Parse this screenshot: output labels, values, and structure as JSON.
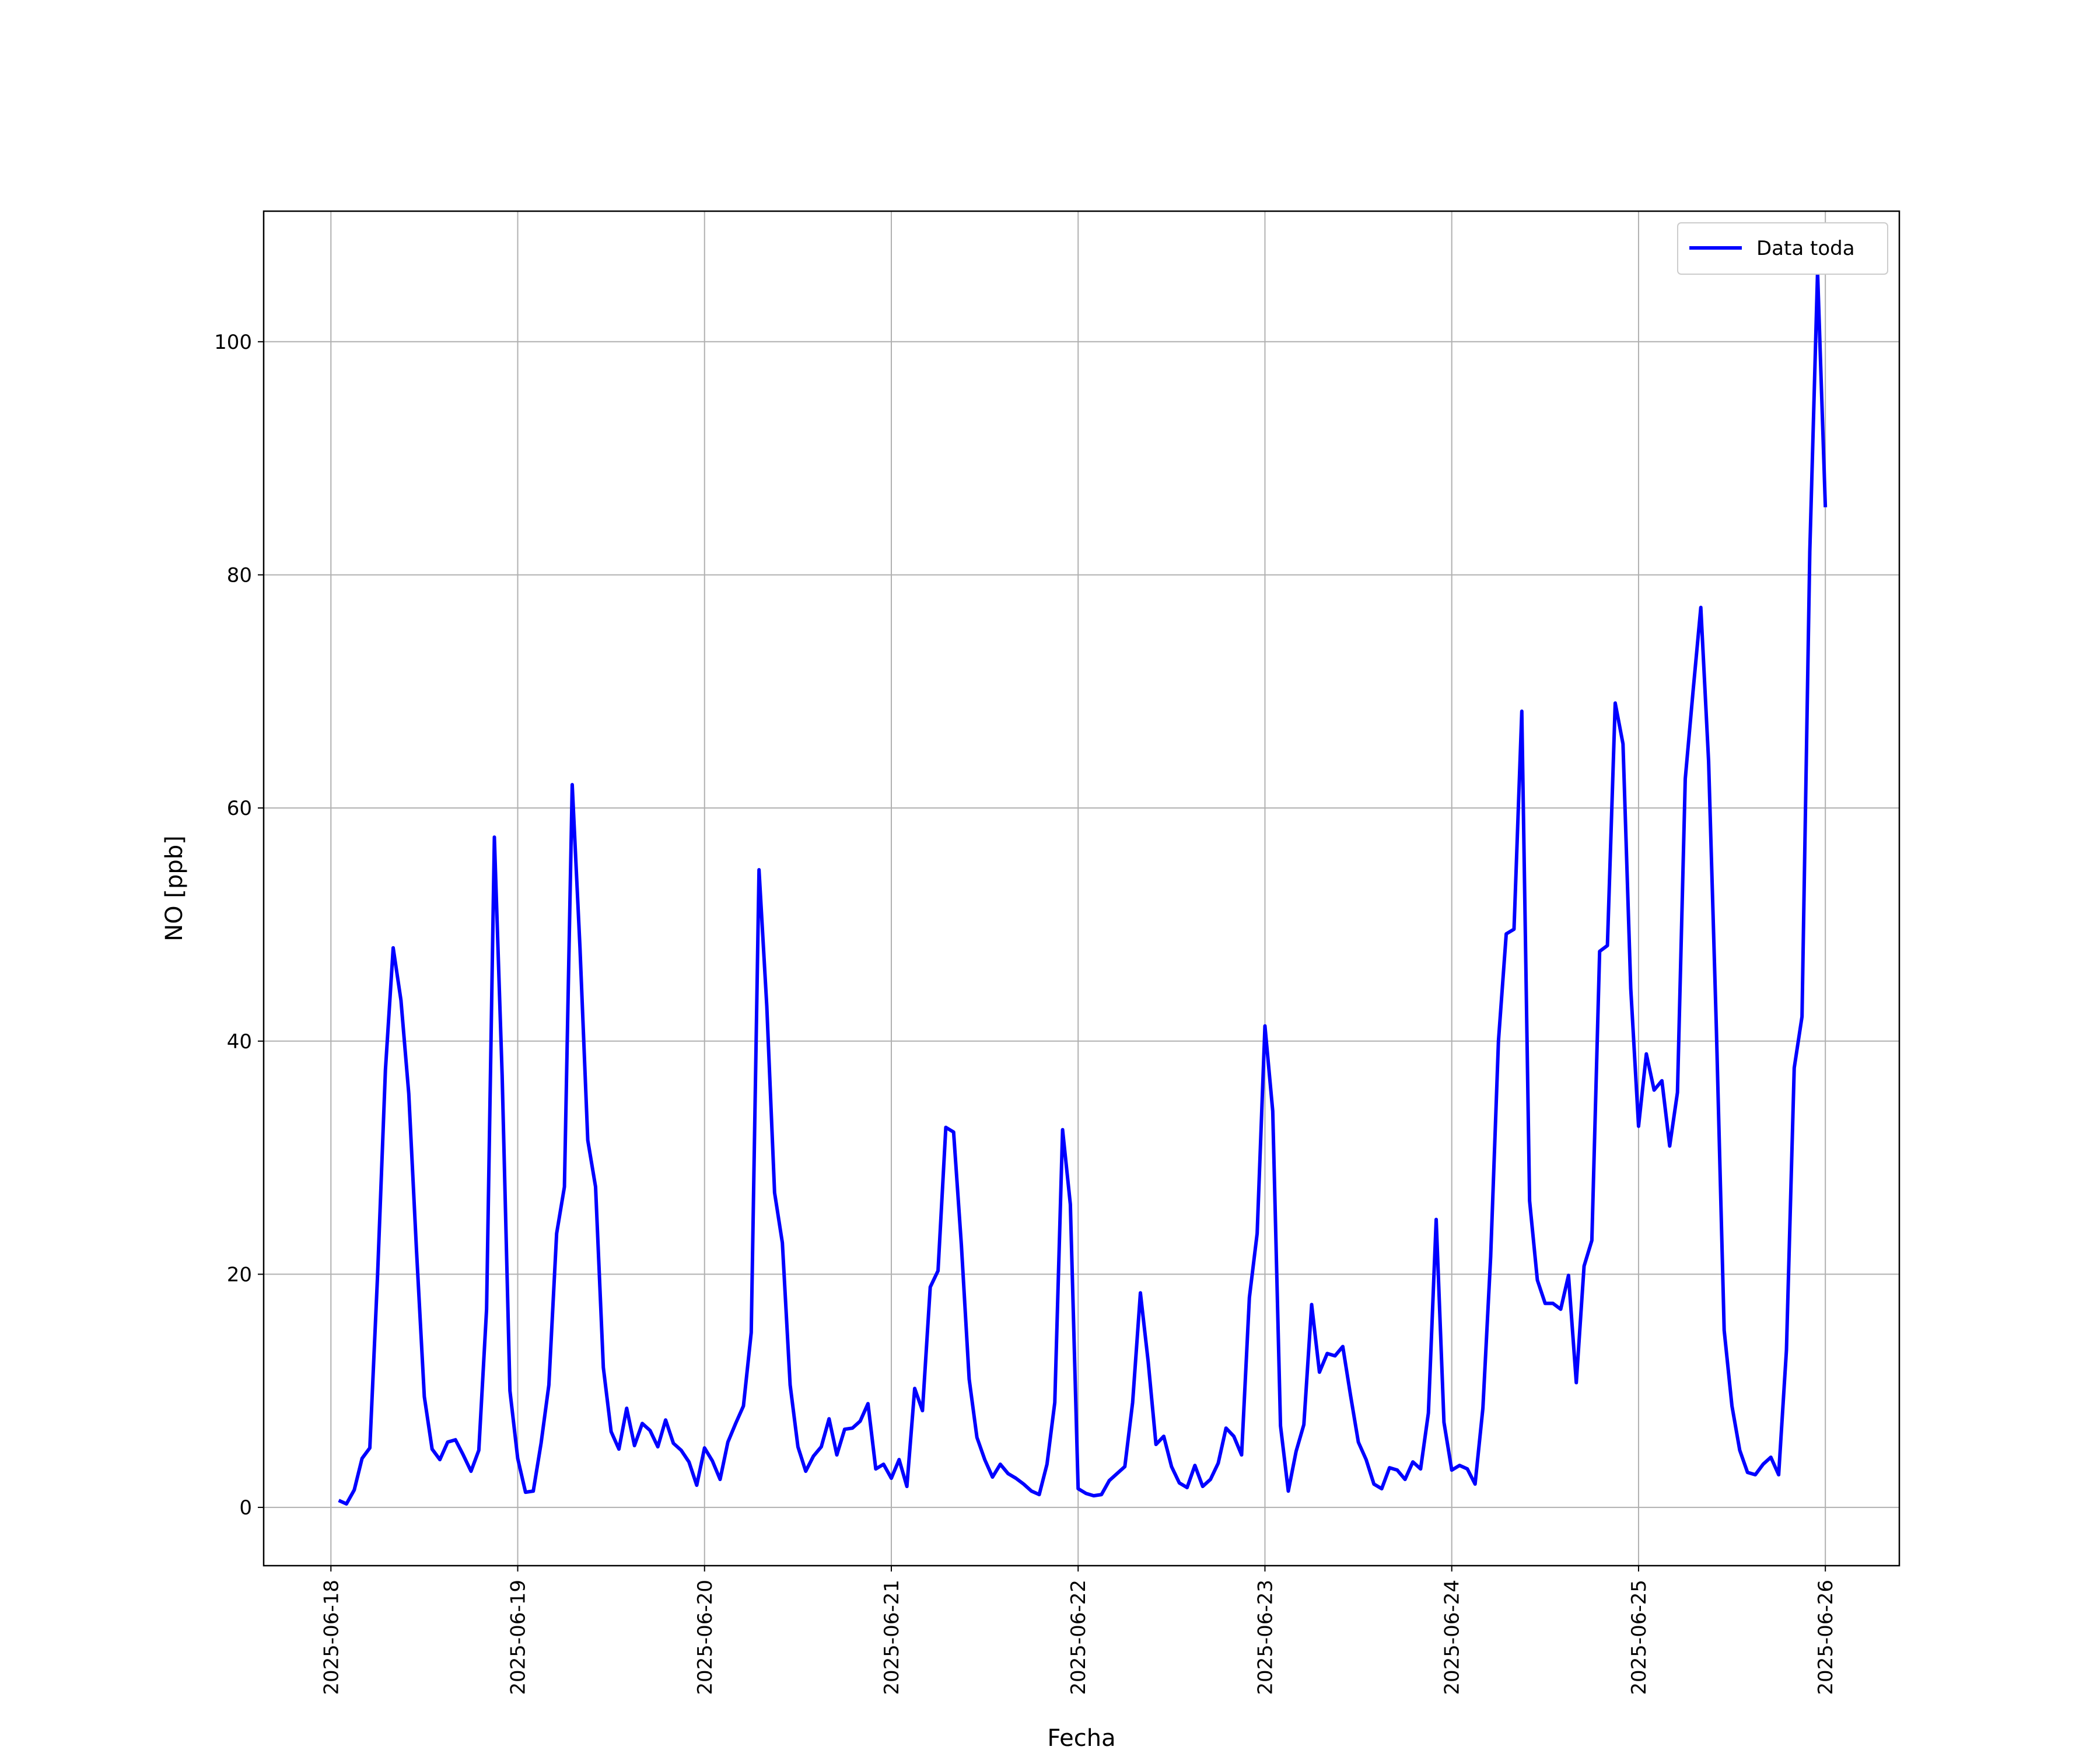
{
  "chart_data": {
    "type": "line",
    "xlabel": "Fecha",
    "ylabel": "NO [ppb]",
    "legend": "upper right",
    "grid": true,
    "xlim": [
      -0.36,
      8.396
    ],
    "ylim": [
      -5,
      111.2
    ],
    "xticks": [
      {
        "value": 0,
        "label": "2025-06-18"
      },
      {
        "value": 1,
        "label": "2025-06-19"
      },
      {
        "value": 2,
        "label": "2025-06-20"
      },
      {
        "value": 3,
        "label": "2025-06-21"
      },
      {
        "value": 4,
        "label": "2025-06-22"
      },
      {
        "value": 5,
        "label": "2025-06-23"
      },
      {
        "value": 6,
        "label": "2025-06-24"
      },
      {
        "value": 7,
        "label": "2025-06-25"
      },
      {
        "value": 8,
        "label": "2025-06-26"
      }
    ],
    "yticks": [
      0,
      20,
      40,
      60,
      80,
      100
    ],
    "x": [
      0.0417,
      0.0833,
      0.125,
      0.1667,
      0.2083,
      0.25,
      0.2917,
      0.3333,
      0.375,
      0.4167,
      0.4583,
      0.5,
      0.5417,
      0.5833,
      0.625,
      0.6667,
      0.7083,
      0.75,
      0.7917,
      0.8333,
      0.875,
      0.9167,
      0.9583,
      1,
      1.0417,
      1.0833,
      1.125,
      1.1667,
      1.2083,
      1.25,
      1.2917,
      1.3333,
      1.375,
      1.4167,
      1.4583,
      1.5,
      1.5417,
      1.5833,
      1.625,
      1.6667,
      1.7083,
      1.75,
      1.7917,
      1.8333,
      1.875,
      1.9167,
      1.9583,
      2,
      2.0417,
      2.0833,
      2.125,
      2.1667,
      2.2083,
      2.25,
      2.2917,
      2.3333,
      2.375,
      2.4167,
      2.4583,
      2.5,
      2.5417,
      2.5833,
      2.625,
      2.6667,
      2.7083,
      2.75,
      2.7917,
      2.8333,
      2.875,
      2.9167,
      2.9583,
      3,
      3.0417,
      3.0833,
      3.125,
      3.1667,
      3.2083,
      3.25,
      3.2917,
      3.3333,
      3.375,
      3.4167,
      3.4583,
      3.5,
      3.5417,
      3.5833,
      3.625,
      3.6667,
      3.7083,
      3.75,
      3.7917,
      3.8333,
      3.875,
      3.9167,
      3.9583,
      4,
      4.0417,
      4.0833,
      4.125,
      4.1667,
      4.2083,
      4.25,
      4.2917,
      4.3333,
      4.375,
      4.4167,
      4.4583,
      4.5,
      4.5417,
      4.5833,
      4.625,
      4.6667,
      4.7083,
      4.75,
      4.7917,
      4.8333,
      4.875,
      4.9167,
      4.9583,
      5,
      5.0417,
      5.0833,
      5.125,
      5.1667,
      5.2083,
      5.25,
      5.2917,
      5.3333,
      5.375,
      5.4167,
      5.4583,
      5.5,
      5.5417,
      5.5833,
      5.625,
      5.6667,
      5.7083,
      5.75,
      5.7917,
      5.8333,
      5.875,
      5.9167,
      5.9583,
      6,
      6.0417,
      6.0833,
      6.125,
      6.1667,
      6.2083,
      6.25,
      6.2917,
      6.3333,
      6.375,
      6.4167,
      6.4583,
      6.5,
      6.5417,
      6.5833,
      6.625,
      6.6667,
      6.7083,
      6.75,
      6.7917,
      6.8333,
      6.875,
      6.9167,
      6.9583,
      7,
      7.0417,
      7.0833,
      7.125,
      7.1667,
      7.2083,
      7.25,
      7.2917,
      7.3333,
      7.375,
      7.4167,
      7.4583,
      7.5,
      7.5417,
      7.5833,
      7.625,
      7.6667,
      7.7083,
      7.75,
      7.7917,
      7.8333,
      7.875,
      7.9167,
      7.9583,
      8
    ],
    "series": [
      {
        "name": "Data toda",
        "color": "#0000ff",
        "values": [
          0.6,
          0.3,
          1.5,
          4.2,
          5.1,
          20,
          37.5,
          48,
          43.5,
          35.5,
          22,
          9.5,
          5,
          4.1,
          5.6,
          5.8,
          4.5,
          3.1,
          4.9,
          17,
          57.5,
          37,
          10,
          4.2,
          1.3,
          1.4,
          5.5,
          10.5,
          23.5,
          27.5,
          62,
          48,
          31.5,
          27.5,
          12,
          6.5,
          5,
          8.5,
          5.3,
          7.2,
          6.6,
          5.2,
          7.5,
          5.5,
          4.9,
          3.9,
          1.9,
          5.1,
          4,
          2.4,
          5.6,
          7.2,
          8.7,
          15,
          54.7,
          43,
          27,
          22.7,
          10.5,
          5.2,
          3.1,
          4.4,
          5.2,
          7.6,
          4.5,
          6.7,
          6.8,
          7.4,
          8.9,
          3.3,
          3.7,
          2.5,
          4.1,
          1.8,
          10.2,
          8.3,
          18.9,
          20.3,
          32.6,
          32.2,
          22.5,
          11,
          6,
          4.1,
          2.6,
          3.7,
          2.9,
          2.5,
          2,
          1.4,
          1.1,
          3.7,
          9,
          32.4,
          26,
          1.6,
          1.2,
          1,
          1.1,
          2.3,
          2.9,
          3.5,
          9,
          18.4,
          12.5,
          5.4,
          6.1,
          3.5,
          2.1,
          1.7,
          3.6,
          1.8,
          2.4,
          3.8,
          6.8,
          6.1,
          4.5,
          18,
          23.5,
          41.3,
          34,
          7,
          1.4,
          4.8,
          7.1,
          17.4,
          11.6,
          13.2,
          13,
          13.8,
          9.6,
          5.6,
          4.1,
          2,
          1.6,
          3.4,
          3.2,
          2.4,
          3.9,
          3.3,
          8.1,
          24.7,
          7.3,
          3.2,
          3.6,
          3.3,
          2,
          8.5,
          21.5,
          40,
          49.2,
          49.6,
          68.3,
          26.3,
          19.5,
          17.5,
          17.5,
          17,
          19.9,
          10.7,
          20.7,
          22.9,
          47.7,
          48.2,
          69,
          65.5,
          44.5,
          32.7,
          38.9,
          35.8,
          36.6,
          31,
          35.6,
          62.5,
          70,
          77.2,
          64,
          41,
          15.2,
          8.7,
          4.9,
          3,
          2.8,
          3.7,
          4.3,
          2.8,
          13.5,
          37.7,
          42.1,
          82,
          106,
          85.8
        ]
      }
    ]
  }
}
